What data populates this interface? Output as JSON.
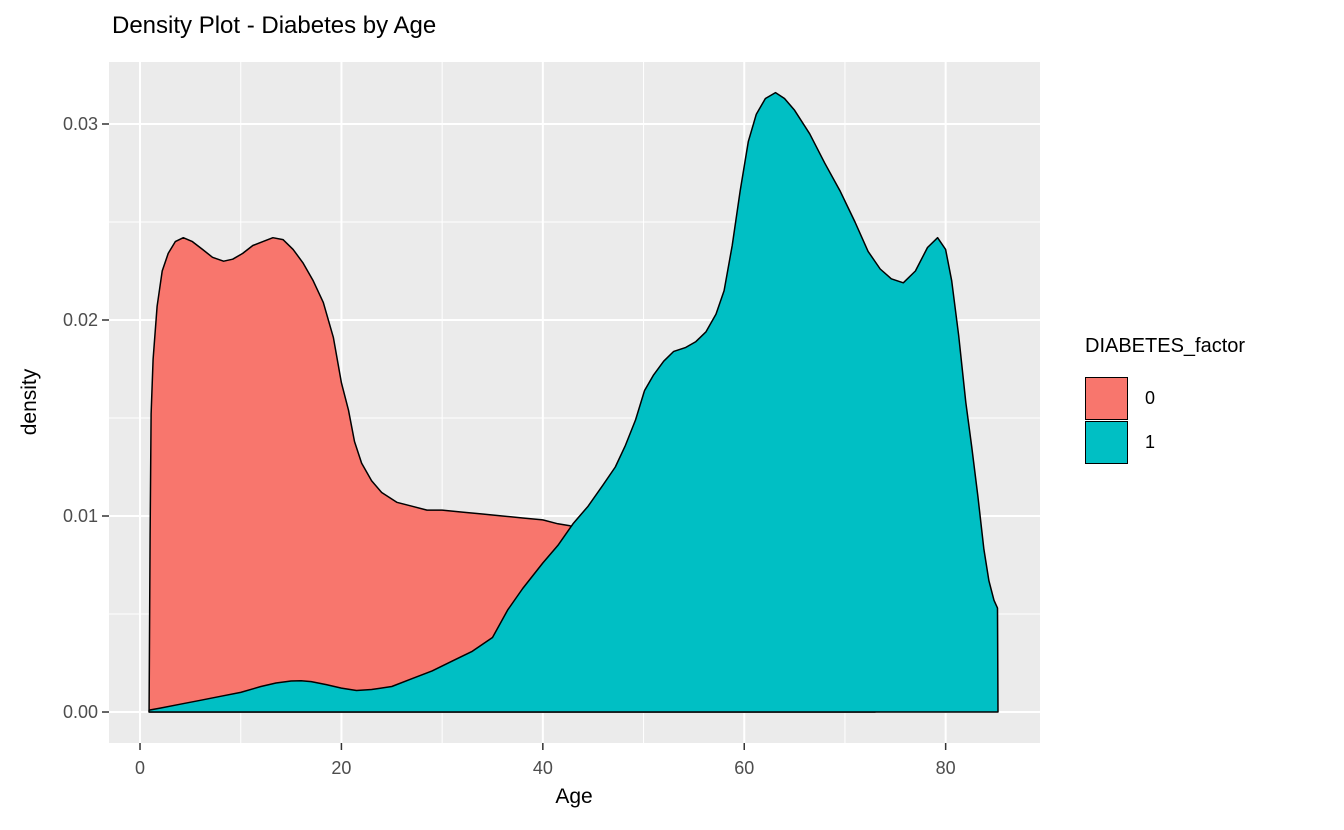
{
  "title": "Density Plot - Diabetes by Age",
  "axes": {
    "x_title": "Age",
    "y_title": "density"
  },
  "legend": {
    "title": "DIABETES_factor",
    "entries": [
      {
        "label": "0",
        "color": "#F8766D"
      },
      {
        "label": "1",
        "color": "#00BFC4"
      }
    ]
  },
  "chart_data": {
    "type": "area",
    "subtype": "kernel-density",
    "title": "Density Plot - Diabetes by Age",
    "xlabel": "Age",
    "ylabel": "density",
    "xlim": [
      -3.08,
      89.37
    ],
    "ylim": [
      -0.001581,
      0.033163
    ],
    "grid": true,
    "panel_bg": "#EBEBEB",
    "grid_color": "#FFFFFF",
    "outline_color": "#000000",
    "tick_color": "#333333",
    "legend_position": "right",
    "legend_title": "DIABETES_factor",
    "x_ticks": {
      "major": [
        0,
        20,
        40,
        60,
        80
      ],
      "minor": [
        10,
        30,
        50,
        70
      ],
      "labels": [
        "0",
        "20",
        "40",
        "60",
        "80"
      ]
    },
    "y_ticks": {
      "major": [
        0,
        0.01,
        0.02,
        0.03
      ],
      "minor": [
        0.005,
        0.015,
        0.025
      ],
      "labels": [
        "0.00",
        "0.01",
        "0.02",
        "0.03"
      ]
    },
    "series": [
      {
        "name": "0",
        "color": "#F8766D",
        "points": [
          [
            0.9,
            0.0002
          ],
          [
            1.0,
            0.009
          ],
          [
            1.1,
            0.0152
          ],
          [
            1.3,
            0.018
          ],
          [
            1.7,
            0.0207
          ],
          [
            2.2,
            0.0225
          ],
          [
            2.8,
            0.0234
          ],
          [
            3.5,
            0.024
          ],
          [
            4.3,
            0.0242
          ],
          [
            5.2,
            0.024
          ],
          [
            6.2,
            0.0236
          ],
          [
            7.2,
            0.0232
          ],
          [
            8.3,
            0.023
          ],
          [
            9.2,
            0.0231
          ],
          [
            10.2,
            0.0234
          ],
          [
            11.2,
            0.0238
          ],
          [
            12.2,
            0.024
          ],
          [
            13.2,
            0.0242
          ],
          [
            14.2,
            0.0241
          ],
          [
            15.2,
            0.0236
          ],
          [
            16.2,
            0.0229
          ],
          [
            17.2,
            0.022
          ],
          [
            18.2,
            0.0209
          ],
          [
            19.2,
            0.0191
          ],
          [
            20.0,
            0.0168
          ],
          [
            20.7,
            0.0154
          ],
          [
            21.3,
            0.0138
          ],
          [
            22.0,
            0.0127
          ],
          [
            23.0,
            0.0118
          ],
          [
            24.0,
            0.0112
          ],
          [
            25.5,
            0.0107
          ],
          [
            27.0,
            0.0105
          ],
          [
            28.5,
            0.0103
          ],
          [
            30.0,
            0.0103
          ],
          [
            32.0,
            0.0102
          ],
          [
            34.0,
            0.0101
          ],
          [
            36.0,
            0.01
          ],
          [
            38.0,
            0.0099
          ],
          [
            40.0,
            0.0098
          ],
          [
            41.5,
            0.0096
          ],
          [
            42.7,
            0.0095
          ],
          [
            44.0,
            0.0092
          ],
          [
            46.0,
            0.0087
          ],
          [
            48.0,
            0.0079
          ],
          [
            50.0,
            0.0069
          ],
          [
            52.0,
            0.0058
          ],
          [
            54.0,
            0.0046
          ],
          [
            56.0,
            0.0035
          ],
          [
            58.0,
            0.0026
          ],
          [
            60.0,
            0.0018
          ],
          [
            62.5,
            0.0011
          ],
          [
            65.0,
            0.0006
          ],
          [
            68.0,
            0.0003
          ],
          [
            71.0,
            0.0001
          ],
          [
            73.0,
            0.0
          ]
        ]
      },
      {
        "name": "1",
        "color": "#00BFC4",
        "points": [
          [
            0.9,
            0.0001
          ],
          [
            2,
            0.0002
          ],
          [
            4,
            0.0004
          ],
          [
            6,
            0.0006
          ],
          [
            8,
            0.0008
          ],
          [
            10,
            0.001
          ],
          [
            12,
            0.0013
          ],
          [
            13.5,
            0.00148
          ],
          [
            15,
            0.00158
          ],
          [
            16,
            0.0016
          ],
          [
            17,
            0.00155
          ],
          [
            18.5,
            0.0014
          ],
          [
            20,
            0.00122
          ],
          [
            21.5,
            0.0011
          ],
          [
            23,
            0.00115
          ],
          [
            25,
            0.0013
          ],
          [
            27,
            0.0017
          ],
          [
            29,
            0.0021
          ],
          [
            31,
            0.0026
          ],
          [
            33,
            0.0031
          ],
          [
            35,
            0.0038
          ],
          [
            36.5,
            0.0052
          ],
          [
            38,
            0.0063
          ],
          [
            40,
            0.0076
          ],
          [
            41.5,
            0.0085
          ],
          [
            43,
            0.0096
          ],
          [
            44.5,
            0.0105
          ],
          [
            46,
            0.0116
          ],
          [
            47.2,
            0.0125
          ],
          [
            48.2,
            0.0136
          ],
          [
            49.2,
            0.0149
          ],
          [
            50.1,
            0.0164
          ],
          [
            51,
            0.0172
          ],
          [
            52,
            0.0179
          ],
          [
            53,
            0.0184
          ],
          [
            54.2,
            0.0186
          ],
          [
            55.2,
            0.0189
          ],
          [
            56.2,
            0.0194
          ],
          [
            57.2,
            0.0203
          ],
          [
            58,
            0.0215
          ],
          [
            58.8,
            0.0238
          ],
          [
            59.6,
            0.0266
          ],
          [
            60.4,
            0.0291
          ],
          [
            61.2,
            0.0305
          ],
          [
            62.1,
            0.0313
          ],
          [
            63.1,
            0.0316
          ],
          [
            64,
            0.0313
          ],
          [
            65,
            0.0307
          ],
          [
            66.5,
            0.0295
          ],
          [
            68,
            0.028
          ],
          [
            69.5,
            0.0266
          ],
          [
            71,
            0.025
          ],
          [
            72.3,
            0.0235
          ],
          [
            73.5,
            0.0226
          ],
          [
            74.6,
            0.0221
          ],
          [
            75.8,
            0.0219
          ],
          [
            77,
            0.0225
          ],
          [
            78.2,
            0.0237
          ],
          [
            79.2,
            0.0242
          ],
          [
            80,
            0.0236
          ],
          [
            80.6,
            0.022
          ],
          [
            81.3,
            0.0192
          ],
          [
            82,
            0.0158
          ],
          [
            82.6,
            0.0135
          ],
          [
            83.2,
            0.011
          ],
          [
            83.8,
            0.0083
          ],
          [
            84.3,
            0.0067
          ],
          [
            84.8,
            0.0057
          ],
          [
            85.15,
            0.0053
          ],
          [
            85.2,
            0.0
          ]
        ]
      }
    ]
  }
}
